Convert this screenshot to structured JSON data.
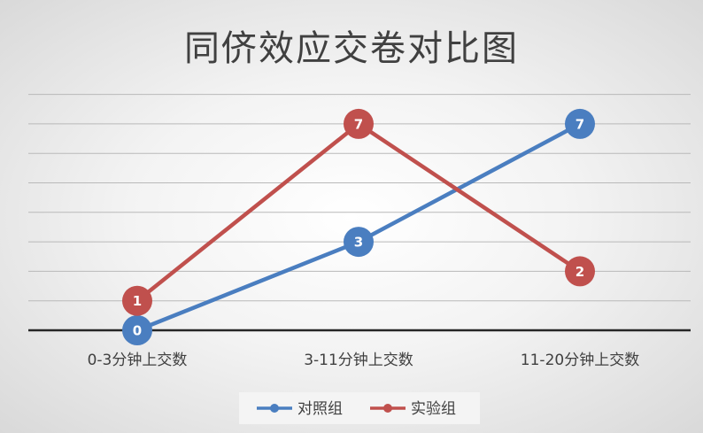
{
  "chart_data": {
    "type": "line",
    "title": "同侪效应交卷对比图",
    "xlabel": "",
    "ylabel": "",
    "categories": [
      "0-3分钟上交数",
      "3-11分钟上交数",
      "11-20分钟上交数"
    ],
    "series": [
      {
        "name": "对照组",
        "values": [
          0,
          3,
          7
        ],
        "color": "#4a7ec0"
      },
      {
        "name": "实验组",
        "values": [
          1,
          7,
          2
        ],
        "color": "#c0504d"
      }
    ],
    "ylim": [
      0,
      8
    ],
    "grid": true,
    "legend_position": "bottom",
    "data_labels": true
  }
}
